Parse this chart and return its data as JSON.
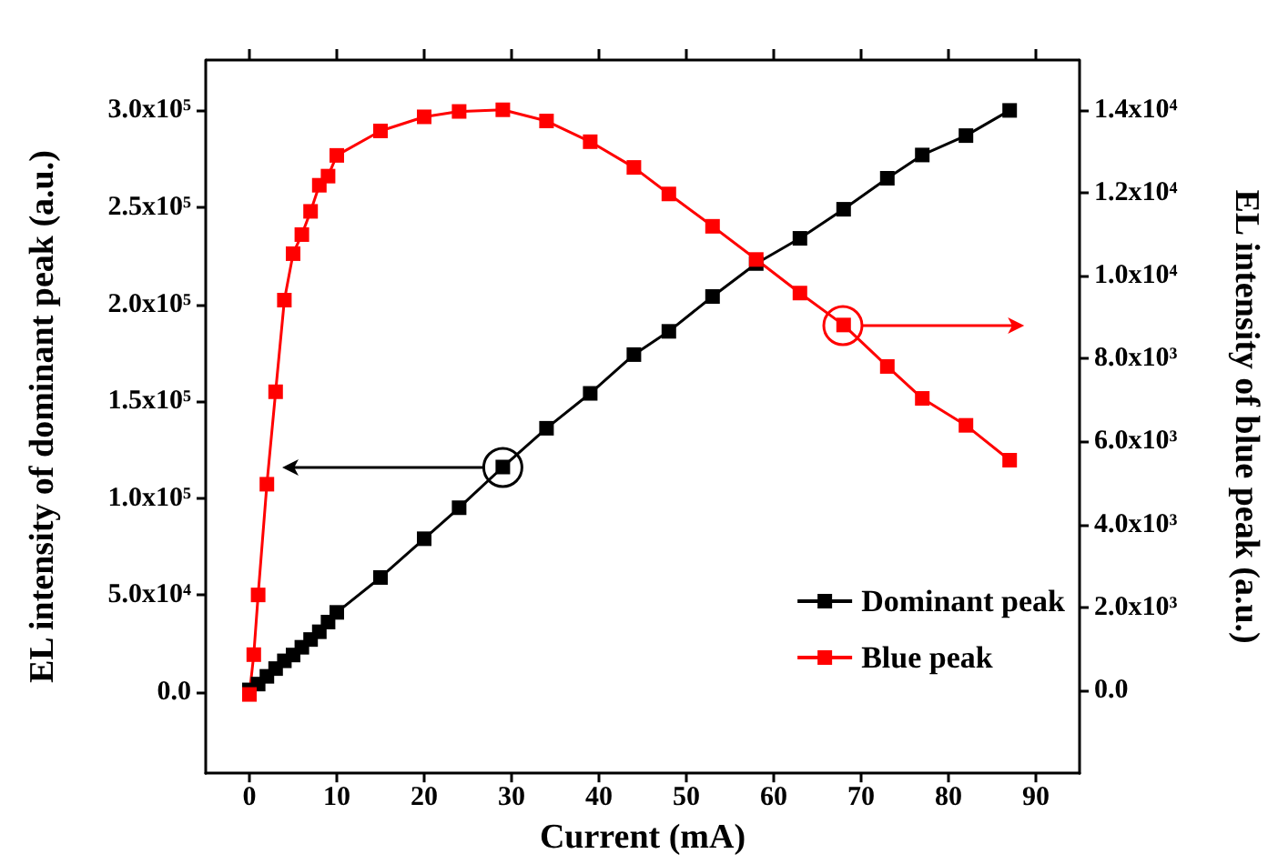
{
  "chart_data": {
    "type": "line",
    "xlabel": "Current (mA)",
    "ylabel": "EL intensity of dominant peak (a.u.)",
    "y2label": "EL intensity of blue peak (a.u.)",
    "xlim": [
      -5,
      95
    ],
    "xticks": [
      0,
      10,
      20,
      30,
      40,
      50,
      60,
      70,
      80,
      90
    ],
    "ylim": [
      -42000,
      326000
    ],
    "yticks": [
      {
        "value": 0,
        "label": "0.0"
      },
      {
        "value": 50000,
        "label": "5.0x10⁴"
      },
      {
        "value": 100000,
        "label": "1.0x10⁵"
      },
      {
        "value": 150000,
        "label": "1.5x10⁵"
      },
      {
        "value": 200000,
        "label": "2.0x10⁵"
      },
      {
        "value": 250000,
        "label": "2.5x10⁵"
      },
      {
        "value": 300000,
        "label": "3.0x10⁵"
      }
    ],
    "y2lim": [
      -2000,
      15200
    ],
    "y2ticks": [
      {
        "value": 0,
        "label": "0.0"
      },
      {
        "value": 2000,
        "label": "2.0x10³"
      },
      {
        "value": 4000,
        "label": "4.0x10³"
      },
      {
        "value": 6000,
        "label": "6.0x10³"
      },
      {
        "value": 8000,
        "label": "8.0x10³"
      },
      {
        "value": 10000,
        "label": "1.0x10⁴"
      },
      {
        "value": 12000,
        "label": "1.2x10⁴"
      },
      {
        "value": 14000,
        "label": "1.4x10⁴"
      }
    ],
    "marker": "square",
    "line_style": "solid",
    "legend": "bottom right",
    "grid": false,
    "series": [
      {
        "name": "Dominant peak",
        "color": "#000000",
        "x": [
          0,
          1,
          2,
          3,
          4,
          5,
          6,
          7,
          8,
          9,
          10,
          15,
          20,
          24,
          29,
          34,
          39,
          44,
          48,
          53,
          58,
          63,
          68,
          73,
          77,
          82,
          87
        ],
        "values": [
          1000,
          4000,
          8000,
          12000,
          16000,
          19000,
          23000,
          27000,
          31000,
          36000,
          41000,
          59000,
          79000,
          95000,
          116000,
          136000,
          154000,
          174000,
          186000,
          204000,
          221000,
          234000,
          249000,
          265000,
          277000,
          287000,
          300000
        ]
      },
      {
        "name": "Blue peak",
        "color": "#ff0000",
        "axis": "y2",
        "x": [
          0,
          0.5,
          1,
          2,
          3,
          4,
          5,
          6,
          7,
          8,
          9,
          10,
          15,
          20,
          24,
          29,
          34,
          39,
          44,
          48,
          53,
          58,
          63,
          68,
          73,
          77,
          82,
          87
        ],
        "values": [
          -100,
          860,
          2300,
          4970,
          7200,
          9410,
          10530,
          10990,
          11550,
          12180,
          12400,
          12900,
          13490,
          13830,
          13960,
          14000,
          13730,
          13230,
          12610,
          11970,
          11190,
          10390,
          9580,
          8810,
          7810,
          7040,
          6390,
          5550
        ]
      }
    ]
  }
}
